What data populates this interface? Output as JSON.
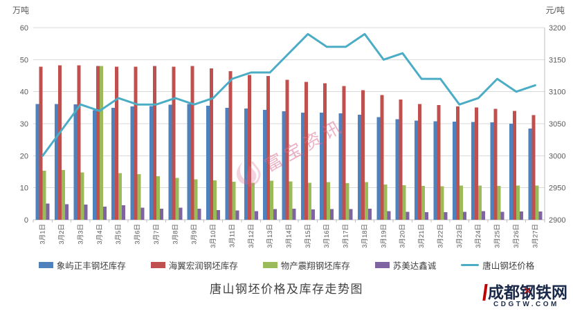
{
  "chart_data": {
    "type": "bar+line",
    "title": "唐山钢坯价格及库存走势图",
    "categories": [
      "3月1日",
      "3月2日",
      "3月3日",
      "3月4日",
      "3月5日",
      "3月6日",
      "3月7日",
      "3月8日",
      "3月9日",
      "3月10日",
      "3月11日",
      "3月12日",
      "3月13日",
      "3月14日",
      "3月15日",
      "3月16日",
      "3月17日",
      "3月18日",
      "3月19日",
      "3月20日",
      "3月21日",
      "3月22日",
      "3月23日",
      "3月24日",
      "3月25日",
      "3月26日",
      "3月27日"
    ],
    "series": [
      {
        "name": "象屿正丰钢坯库存",
        "type": "bar",
        "axis": "left",
        "color": "#4F81BD",
        "values": [
          36.2,
          36.2,
          36.0,
          34.2,
          35.0,
          35.4,
          35.5,
          35.9,
          36.2,
          35.6,
          35.0,
          34.8,
          34.3,
          33.9,
          33.5,
          33.4,
          33.2,
          32.8,
          32.0,
          31.4,
          31.0,
          30.8,
          30.6,
          30.5,
          30.4,
          30.0,
          28.5
        ]
      },
      {
        "name": "海翼宏润钢坯库存",
        "type": "bar",
        "axis": "left",
        "color": "#C0504D",
        "values": [
          47.8,
          48.2,
          48.2,
          48.0,
          47.8,
          47.8,
          48.0,
          47.8,
          48.0,
          47.3,
          46.4,
          45.2,
          44.9,
          43.7,
          43.1,
          42.6,
          41.8,
          40.5,
          39.0,
          37.6,
          36.1,
          35.8,
          35.4,
          35.1,
          34.6,
          34.0,
          32.7
        ]
      },
      {
        "name": "物产震翔钢坯库存",
        "type": "bar",
        "axis": "left",
        "color": "#9BBB59",
        "values": [
          15.3,
          15.5,
          14.8,
          48.0,
          14.6,
          14.2,
          13.6,
          13.1,
          12.6,
          12.3,
          11.9,
          11.6,
          12.2,
          12.0,
          11.6,
          11.8,
          11.4,
          11.8,
          11.0,
          10.8,
          10.6,
          10.5,
          10.7,
          10.7,
          10.6,
          10.7,
          10.7
        ]
      },
      {
        "name": "苏美达鑫诚",
        "type": "bar",
        "axis": "left",
        "color": "#8064A2",
        "values": [
          5.1,
          4.9,
          4.7,
          4.1,
          4.5,
          3.8,
          3.5,
          3.8,
          3.5,
          3.0,
          2.9,
          2.7,
          3.3,
          3.5,
          3.2,
          3.3,
          3.3,
          3.5,
          2.7,
          2.5,
          2.4,
          2.4,
          2.5,
          2.7,
          2.5,
          2.6,
          2.6
        ]
      },
      {
        "name": "唐山钢坯价格",
        "type": "line",
        "axis": "right",
        "color": "#4BACC6",
        "values": [
          3000,
          3040,
          3080,
          3070,
          3090,
          3080,
          3080,
          3090,
          3080,
          3090,
          3120,
          3130,
          3130,
          3160,
          3190,
          3170,
          3170,
          3190,
          3150,
          3160,
          3120,
          3120,
          3080,
          3090,
          3120,
          3100,
          3110
        ]
      }
    ],
    "left_axis": {
      "label": "万吨",
      "min": 0,
      "max": 60,
      "step": 10
    },
    "right_axis": {
      "label": "元/吨",
      "min": 2900,
      "max": 3200,
      "step": 50
    },
    "grid": true,
    "legend_position": "bottom"
  },
  "watermark": {
    "text": "富宝资讯"
  },
  "logo": {
    "name": "成都钢铁网",
    "accent_mark": "✕",
    "domain": "CDGTW.COM"
  },
  "colors": {
    "grid": "#D9D9D9",
    "axis": "#BFBFBF",
    "tick_text": "#595959",
    "legend_text": "#404040",
    "watermark_pink": "#DB7093",
    "logo_navy": "#1B2A4A",
    "logo_red": "#C00000"
  }
}
